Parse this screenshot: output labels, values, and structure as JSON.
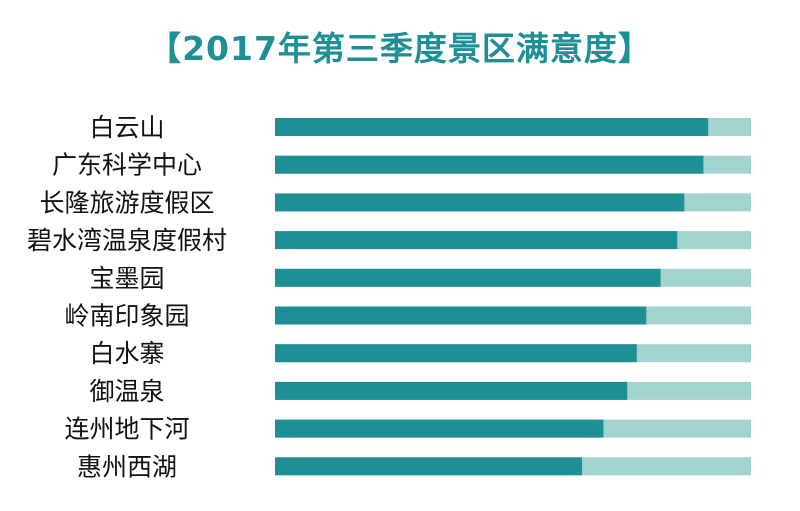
{
  "chart_data": {
    "type": "bar",
    "orientation": "horizontal",
    "stacked_to_total": true,
    "title": "【2017年第三季度景区满意度】",
    "categories": [
      "白云山",
      "广东科学中心",
      "长隆旅游度假区",
      "碧水湾温泉度假村",
      "宝墨园",
      "岭南印象园",
      "白水寨",
      "御温泉",
      "连州地下河",
      "惠州西湖"
    ],
    "values": [
      91,
      90,
      86,
      84.5,
      81,
      78,
      76,
      74,
      69,
      64.5
    ],
    "xlim": [
      0,
      100
    ],
    "xlabel": "",
    "ylabel": "",
    "grid": false,
    "legend": "none",
    "colors": {
      "value": "#1e8f95",
      "remainder": "#a3d3cf",
      "title": "#1e8f95",
      "label": "#111111"
    }
  }
}
